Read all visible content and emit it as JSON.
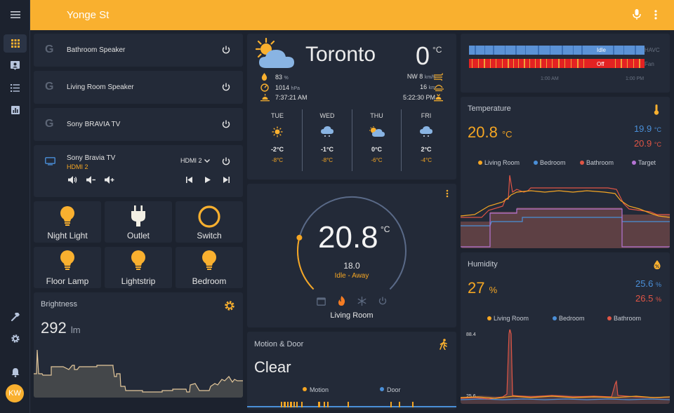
{
  "app": {
    "title": "Yonge St",
    "user_initials": "KW"
  },
  "colors": {
    "accent": "#f9b02f",
    "card": "#232a38",
    "bg": "#1c222e",
    "orange": "#f5a623",
    "blue": "#4a8fd8",
    "red": "#e05545",
    "purple": "#b574d4"
  },
  "media": [
    {
      "name": "Bathroom Speaker",
      "icon": "google-icon"
    },
    {
      "name": "Living Room Speaker",
      "icon": "google-icon"
    },
    {
      "name": "Sony BRAVIA TV",
      "icon": "google-icon"
    }
  ],
  "tv": {
    "name": "Sony Bravia TV",
    "source": "HDMI 2",
    "source_select": "HDMI 2"
  },
  "tiles": [
    {
      "label": "Night Light",
      "icon": "bulb-icon"
    },
    {
      "label": "Outlet",
      "icon": "plug-icon"
    },
    {
      "label": "Switch",
      "icon": "circle-icon"
    },
    {
      "label": "Floor Lamp",
      "icon": "bulb-icon"
    },
    {
      "label": "Lightstrip",
      "icon": "bulb-icon"
    },
    {
      "label": "Bedroom",
      "icon": "bulb-icon"
    }
  ],
  "brightness": {
    "title": "Brightness",
    "value": "292",
    "unit": "lm"
  },
  "weather": {
    "city": "Toronto",
    "temp": "0",
    "unit": "°C",
    "humidity": "83",
    "humidity_unit": "%",
    "pressure": "1014",
    "pressure_unit": "hPa",
    "sunrise": "7:37:21 AM",
    "wind": "NW 8",
    "wind_unit": "km/h",
    "visibility": "16",
    "visibility_unit": "km",
    "sunset": "5:22:30 PM",
    "forecast": [
      {
        "day": "TUE",
        "high": "-2°C",
        "low": "-8°C",
        "icon": "sun-icon"
      },
      {
        "day": "WED",
        "high": "-1°C",
        "low": "-8°C",
        "icon": "snow-cloud-icon"
      },
      {
        "day": "THU",
        "high": "0°C",
        "low": "-6°C",
        "icon": "partly-cloudy-icon"
      },
      {
        "day": "FRI",
        "high": "2°C",
        "low": "-4°C",
        "icon": "snow-cloud-icon"
      }
    ]
  },
  "thermostat": {
    "temp": "20.8",
    "unit": "°C",
    "target": "18.0",
    "status": "Idle - Away",
    "name": "Living Room",
    "target_fraction": 0.22
  },
  "motion": {
    "title": "Motion & Door",
    "state": "Clear",
    "legend": [
      "Motion",
      "Door"
    ]
  },
  "history": {
    "rows": [
      {
        "label": "HAVC",
        "state": "Idle"
      },
      {
        "label": "Fan",
        "state": "Off"
      }
    ],
    "times": [
      "1:00 AM",
      "1:00 PM"
    ]
  },
  "temperature": {
    "title": "Temperature",
    "value": "20.8",
    "unit": "°C",
    "min": "19.9",
    "max": "20.9",
    "minmax_unit": "°C",
    "legend": [
      "Living Room",
      "Bedroom",
      "Bathroom",
      "Target"
    ]
  },
  "humidity": {
    "title": "Humidity",
    "value": "27",
    "unit": "%",
    "min": "25.6",
    "max": "26.5",
    "minmax_unit": "%",
    "legend": [
      "Living Room",
      "Bedroom",
      "Bathroom"
    ],
    "ymax": "88.4",
    "ymin": "25.6"
  }
}
